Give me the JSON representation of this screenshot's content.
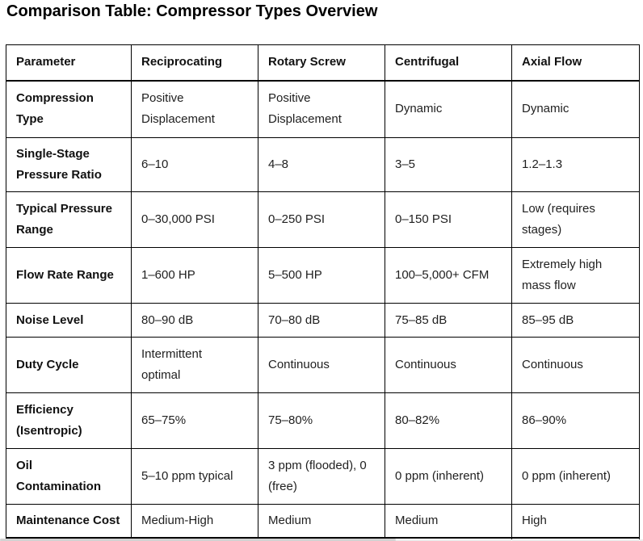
{
  "title": "Comparison Table: Compressor Types Overview",
  "table": {
    "columns": [
      "Parameter",
      "Reciprocating",
      "Rotary Screw",
      "Centrifugal",
      "Axial Flow"
    ],
    "rows": [
      {
        "param": "Compression\nType",
        "values": [
          "Positive\nDisplacement",
          "Positive\nDisplacement",
          "Dynamic",
          "Dynamic"
        ]
      },
      {
        "param": "Single-Stage\nPressure Ratio",
        "values": [
          "6–10",
          "4–8",
          "3–5",
          "1.2–1.3"
        ]
      },
      {
        "param": "Typical Pressure\nRange",
        "values": [
          "0–30,000 PSI",
          "0–250 PSI",
          "0–150 PSI",
          "Low (requires\nstages)"
        ]
      },
      {
        "param": "Flow Rate Range",
        "values": [
          "1–600 HP",
          "5–500 HP",
          "100–5,000+ CFM",
          "Extremely high\nmass flow"
        ]
      },
      {
        "param": "Noise Level",
        "values": [
          "80–90 dB",
          "70–80 dB",
          "75–85 dB",
          "85–95 dB"
        ]
      },
      {
        "param": "Duty Cycle",
        "values": [
          "Intermittent\noptimal",
          "Continuous",
          "Continuous",
          "Continuous"
        ]
      },
      {
        "param": "Efficiency\n(Isentropic)",
        "values": [
          "65–75%",
          "75–80%",
          "80–82%",
          "86–90%"
        ]
      },
      {
        "param": "Oil\nContamination",
        "values": [
          "5–10 ppm typical",
          "3 ppm (flooded), 0\n(free)",
          "0 ppm (inherent)",
          "0 ppm (inherent)"
        ]
      },
      {
        "param": "Maintenance Cost",
        "values": [
          "Medium-High",
          "Medium",
          "Medium",
          "High"
        ]
      }
    ]
  },
  "colors": {
    "border": "#000000",
    "text": "#1f1f1f",
    "title": "#000000",
    "edge_strip": "#d2d2d2"
  }
}
